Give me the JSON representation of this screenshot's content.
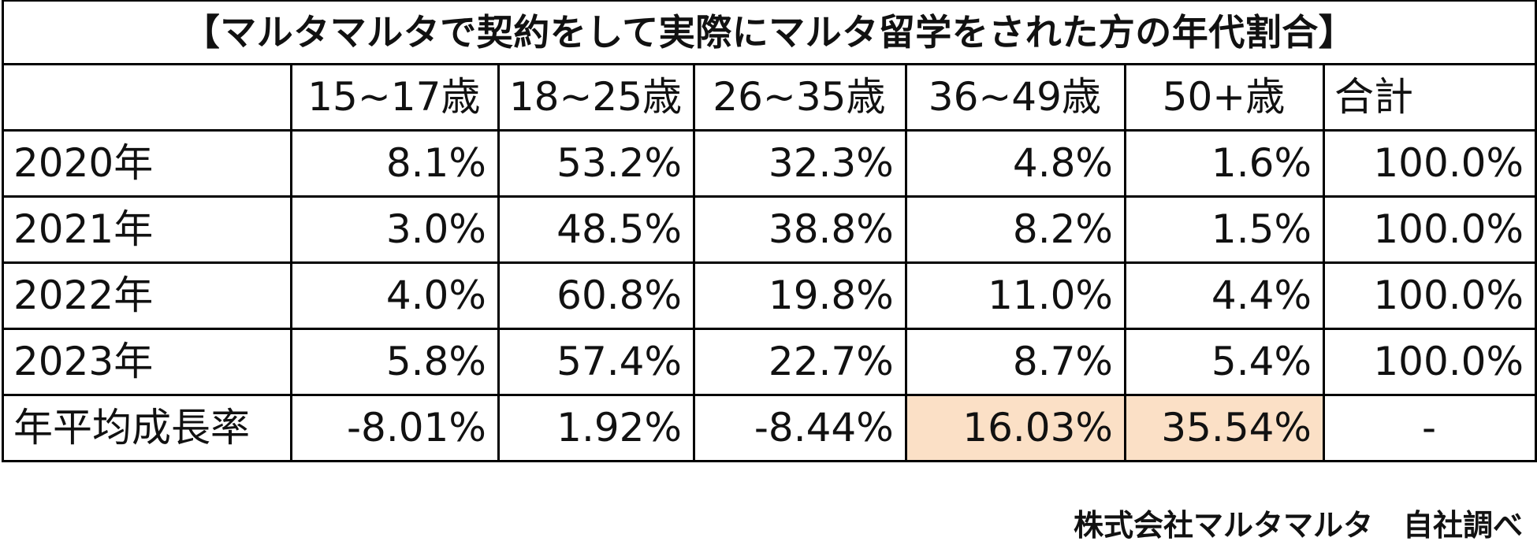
{
  "title": "【マルタマルタで契約をして実際にマルタ留学をされた方の年代割合】",
  "header": {
    "corner": "",
    "columns": [
      "15~17歳",
      "18~25歳",
      "26~35歳",
      "36~49歳",
      "50+歳",
      "合計"
    ]
  },
  "rows": [
    {
      "label": "2020年",
      "cells": [
        "8.1%",
        "53.2%",
        "32.3%",
        "4.8%",
        "1.6%",
        "100.0%"
      ]
    },
    {
      "label": "2021年",
      "cells": [
        "3.0%",
        "48.5%",
        "38.8%",
        "8.2%",
        "1.5%",
        "100.0%"
      ]
    },
    {
      "label": "2022年",
      "cells": [
        "4.0%",
        "60.8%",
        "19.8%",
        "11.0%",
        "4.4%",
        "100.0%"
      ]
    },
    {
      "label": "2023年",
      "cells": [
        "5.8%",
        "57.4%",
        "22.7%",
        "8.7%",
        "5.4%",
        "100.0%"
      ]
    },
    {
      "label": "年平均成長率",
      "cells": [
        "-8.01%",
        "1.92%",
        "-8.44%",
        "16.03%",
        "35.54%",
        "-"
      ]
    }
  ],
  "highlight_color": "#fbe0c6",
  "footer": {
    "source": "株式会社マルタマルタ　自社調べ"
  }
}
